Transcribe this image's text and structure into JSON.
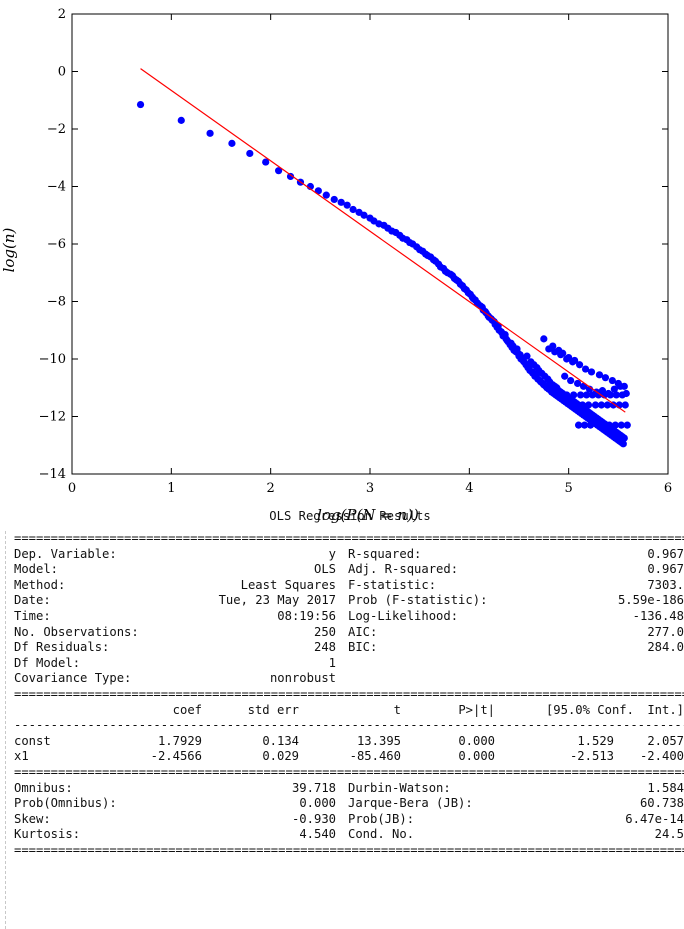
{
  "chart_data": {
    "type": "scatter",
    "title": "",
    "xlabel": "log(P(\\widehat{N} = n))",
    "ylabel": "log(n)",
    "xlim": [
      0,
      6
    ],
    "ylim": [
      -14,
      2
    ],
    "xticks": [
      "0",
      "1",
      "2",
      "3",
      "4",
      "5",
      "6"
    ],
    "yticks": [
      "2",
      "0",
      "−2",
      "−4",
      "−6",
      "−8",
      "−10",
      "−12",
      "−14"
    ],
    "grid": false,
    "point_color": "#0000ff",
    "fit_color": "#ff0000",
    "series": [
      {
        "kind": "points",
        "x": [
          0.69,
          1.1,
          1.39,
          1.61,
          1.79,
          1.95,
          2.08,
          2.2,
          2.3,
          2.4,
          2.48,
          2.56,
          2.64,
          2.71,
          2.77,
          2.83,
          2.89,
          2.94,
          3.0,
          3.04,
          3.09,
          3.14,
          3.18,
          3.22,
          3.26,
          3.3,
          3.33,
          3.37,
          3.4,
          3.43,
          3.47,
          3.5,
          3.53,
          3.56,
          3.58,
          3.61,
          3.64,
          3.66,
          3.69,
          3.71,
          3.74,
          3.76,
          3.78,
          3.81,
          3.83,
          3.85,
          3.87,
          3.89,
          3.91,
          3.93,
          3.95,
          3.97,
          3.99,
          4.01,
          4.03,
          4.04,
          4.06,
          4.08,
          4.09,
          4.11,
          4.13,
          4.14,
          4.16,
          4.17,
          4.19,
          4.2,
          4.22,
          4.23,
          4.25,
          4.26,
          4.28,
          4.29,
          4.3,
          4.32,
          4.33,
          4.34,
          4.36,
          4.37,
          4.38,
          4.39,
          4.41,
          4.42,
          4.43,
          4.44,
          4.45,
          4.47,
          4.48,
          4.49,
          4.5,
          4.51,
          4.52,
          4.53,
          4.54,
          4.55,
          4.57,
          4.58,
          4.59,
          4.6,
          4.61,
          4.62,
          4.63,
          4.64,
          4.65,
          4.66,
          4.67,
          4.68,
          4.69,
          4.7,
          4.71,
          4.72,
          4.73,
          4.74,
          4.75,
          4.76,
          4.77,
          4.78,
          4.79,
          4.8,
          4.81,
          4.82,
          4.83,
          4.84,
          4.85,
          4.86,
          4.87,
          4.88,
          4.89,
          4.9,
          4.91,
          4.92,
          4.93,
          4.94,
          4.95,
          4.96,
          4.97,
          4.98,
          4.99,
          5.0,
          5.01,
          5.02,
          5.03,
          5.04,
          5.05,
          5.06,
          5.07,
          5.08,
          5.09,
          5.1,
          5.11,
          5.12,
          5.13,
          5.14,
          5.15,
          5.16,
          5.17,
          5.18,
          5.19,
          5.2,
          5.21,
          5.22,
          5.23,
          5.24,
          5.25,
          5.26,
          5.27,
          5.28,
          5.29,
          5.3,
          5.31,
          5.32,
          5.33,
          5.34,
          5.35,
          5.36,
          5.37,
          5.38,
          5.39,
          5.4,
          5.41,
          5.42,
          5.43,
          5.44,
          5.45,
          5.46,
          5.47,
          5.48,
          5.49,
          5.5,
          5.51,
          5.52,
          5.53,
          5.54,
          5.55,
          5.56,
          4.98,
          5.05,
          5.12,
          5.18,
          5.24,
          5.3,
          5.36,
          5.42,
          5.48,
          5.54,
          5.08,
          5.14,
          5.2,
          5.27,
          5.33,
          5.39,
          5.45,
          5.51,
          5.57,
          5.1,
          5.16,
          5.22,
          5.29,
          5.35,
          5.41,
          5.47,
          5.53,
          5.59,
          4.96,
          5.02,
          5.09,
          5.15,
          5.21,
          5.28,
          5.34,
          5.4,
          5.46,
          5.52,
          5.58,
          4.8,
          4.86,
          4.92,
          4.98,
          5.04,
          5.11,
          5.17,
          5.23,
          5.31,
          5.37,
          5.44,
          5.5,
          5.56,
          4.75,
          4.84,
          4.9,
          4.94,
          5.0,
          5.06
        ],
        "y": [
          -1.15,
          -1.7,
          -2.15,
          -2.5,
          -2.85,
          -3.15,
          -3.45,
          -3.65,
          -3.85,
          -4.0,
          -4.15,
          -4.3,
          -4.45,
          -4.55,
          -4.65,
          -4.8,
          -4.9,
          -5.0,
          -5.1,
          -5.2,
          -5.3,
          -5.35,
          -5.45,
          -5.55,
          -5.6,
          -5.7,
          -5.8,
          -5.85,
          -5.95,
          -6.0,
          -6.1,
          -6.2,
          -6.25,
          -6.35,
          -6.4,
          -6.45,
          -6.55,
          -6.6,
          -6.7,
          -6.8,
          -6.85,
          -6.95,
          -7.0,
          -7.05,
          -7.1,
          -7.2,
          -7.25,
          -7.3,
          -7.4,
          -7.45,
          -7.55,
          -7.6,
          -7.7,
          -7.75,
          -7.85,
          -7.9,
          -7.95,
          -8.05,
          -8.1,
          -8.15,
          -8.2,
          -8.3,
          -8.35,
          -8.4,
          -8.5,
          -8.55,
          -8.6,
          -8.65,
          -8.7,
          -8.8,
          -8.9,
          -8.85,
          -9.0,
          -9.05,
          -9.1,
          -9.2,
          -9.15,
          -9.3,
          -9.35,
          -9.4,
          -9.5,
          -9.45,
          -9.6,
          -9.55,
          -9.7,
          -9.75,
          -9.65,
          -9.8,
          -9.9,
          -9.85,
          -10.0,
          -9.95,
          -10.05,
          -10.1,
          -10.2,
          -9.9,
          -10.3,
          -10.25,
          -10.4,
          -10.1,
          -10.45,
          -10.5,
          -10.2,
          -10.6,
          -10.55,
          -10.3,
          -10.7,
          -10.4,
          -10.75,
          -10.8,
          -10.5,
          -10.85,
          -10.9,
          -10.6,
          -10.95,
          -11.0,
          -10.7,
          -11.05,
          -10.8,
          -11.1,
          -11.15,
          -10.9,
          -11.2,
          -10.95,
          -11.25,
          -11.0,
          -11.3,
          -11.1,
          -11.35,
          -11.15,
          -11.4,
          -11.2,
          -11.45,
          -11.25,
          -11.5,
          -11.3,
          -11.55,
          -11.35,
          -11.6,
          -11.4,
          -11.65,
          -11.45,
          -11.7,
          -11.5,
          -11.75,
          -11.55,
          -11.8,
          -11.6,
          -11.85,
          -11.65,
          -11.9,
          -11.7,
          -11.95,
          -11.75,
          -12.0,
          -11.8,
          -12.05,
          -11.85,
          -12.1,
          -11.9,
          -12.15,
          -11.95,
          -12.2,
          -12.0,
          -12.25,
          -12.05,
          -12.3,
          -12.1,
          -12.35,
          -12.15,
          -12.4,
          -12.2,
          -12.45,
          -12.25,
          -12.5,
          -12.3,
          -12.55,
          -12.35,
          -12.6,
          -12.4,
          -12.65,
          -12.45,
          -12.7,
          -12.5,
          -12.75,
          -12.55,
          -12.8,
          -12.6,
          -12.85,
          -12.65,
          -12.9,
          -12.7,
          -12.95,
          -12.75,
          -11.25,
          -11.25,
          -11.25,
          -11.25,
          -11.25,
          -11.25,
          -11.25,
          -11.25,
          -11.25,
          -11.25,
          -11.6,
          -11.6,
          -11.6,
          -11.6,
          -11.6,
          -11.6,
          -11.6,
          -11.6,
          -11.6,
          -12.3,
          -12.3,
          -12.3,
          -12.3,
          -12.3,
          -12.3,
          -12.3,
          -12.3,
          -12.3,
          -10.6,
          -10.75,
          -10.85,
          -10.95,
          -11.05,
          -11.15,
          -11.1,
          -11.2,
          -11.05,
          -10.95,
          -11.2,
          -9.65,
          -9.75,
          -9.85,
          -10.0,
          -10.1,
          -10.2,
          -10.35,
          -10.45,
          -10.55,
          -10.65,
          -10.75,
          -10.85,
          -10.95,
          -9.3,
          -9.55,
          -9.7,
          -9.8,
          -9.95,
          -10.05
        ]
      },
      {
        "kind": "fit-line",
        "x": [
          0.69,
          5.57
        ],
        "y": [
          0.1,
          -11.85
        ]
      }
    ]
  },
  "ols": {
    "title": "OLS Regression Results",
    "rule_eq": "==========================================================================================================",
    "rule_dash": "----------------------------------------------------------------------------------------------------------",
    "top": [
      [
        "Dep. Variable:",
        "y",
        "R-squared:",
        "0.967"
      ],
      [
        "Model:",
        "OLS",
        "Adj. R-squared:",
        "0.967"
      ],
      [
        "Method:",
        "Least Squares",
        "F-statistic:",
        "7303."
      ],
      [
        "Date:",
        "Tue, 23 May 2017",
        "Prob (F-statistic):",
        "5.59e-186"
      ],
      [
        "Time:",
        "08:19:56",
        "Log-Likelihood:",
        "-136.48"
      ],
      [
        "No. Observations:",
        "250",
        "AIC:",
        "277.0"
      ],
      [
        "Df Residuals:",
        "248",
        "BIC:",
        "284.0"
      ],
      [
        "Df Model:",
        "1",
        "",
        ""
      ],
      [
        "Covariance Type:",
        "nonrobust",
        "",
        ""
      ]
    ],
    "coef_header": [
      "",
      "coef",
      "std err",
      "t",
      "P>|t|",
      "[95.0% Conf.",
      "Int.]"
    ],
    "coef_rows": [
      [
        "const",
        "1.7929",
        "0.134",
        "13.395",
        "0.000",
        "1.529",
        "2.057"
      ],
      [
        "x1",
        "-2.4566",
        "0.029",
        "-85.460",
        "0.000",
        "-2.513",
        "-2.400"
      ]
    ],
    "bottom": [
      [
        "Omnibus:",
        "39.718",
        "Durbin-Watson:",
        "1.584"
      ],
      [
        "Prob(Omnibus):",
        "0.000",
        "Jarque-Bera (JB):",
        "60.738"
      ],
      [
        "Skew:",
        "-0.930",
        "Prob(JB):",
        "6.47e-14"
      ],
      [
        "Kurtosis:",
        "4.540",
        "Cond. No.",
        "24.5"
      ]
    ]
  }
}
